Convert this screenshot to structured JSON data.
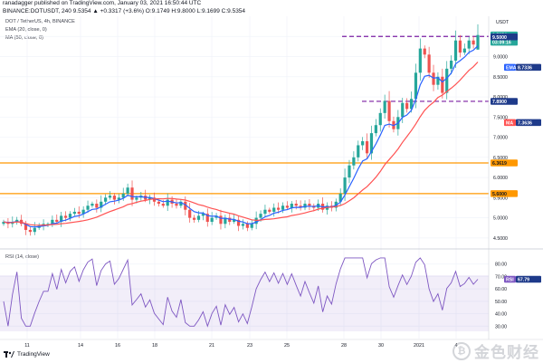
{
  "header": {
    "author_line": "ranadagger published on TradingView.com, January 03, 2021 16:50:44 UTC",
    "symbol_line": "BINANCE:DOTUSDT, 240  9.5354  ▲ +0.3317 (+3.6%)  O:9.1749  H:9.8000  L:9.1699  C:9.5354"
  },
  "legend": {
    "pair": "DOT / TetherUS, 4h, BINANCE",
    "ema": "EMA (20, close, 0)",
    "ma": "MA (50, close, 0)",
    "rsi": "RSI (14, close)"
  },
  "axis": {
    "currency": "USDT",
    "price_ticks": [
      {
        "label": "9.5000",
        "value": 9.5
      },
      {
        "label": "9.0000",
        "value": 9.0
      },
      {
        "label": "8.5000",
        "value": 8.5
      },
      {
        "label": "8.0000",
        "value": 8.0
      },
      {
        "label": "7.5000",
        "value": 7.5
      },
      {
        "label": "7.0000",
        "value": 7.0
      },
      {
        "label": "6.5000",
        "value": 6.5
      },
      {
        "label": "6.0000",
        "value": 6.0
      },
      {
        "label": "5.5000",
        "value": 5.5
      },
      {
        "label": "5.0000",
        "value": 5.0
      },
      {
        "label": "4.5000",
        "value": 4.5
      }
    ],
    "rsi_ticks": [
      {
        "label": "80.00",
        "value": 80
      },
      {
        "label": "70.00",
        "value": 70
      },
      {
        "label": "60.00",
        "value": 60
      },
      {
        "label": "50.00",
        "value": 50
      },
      {
        "label": "40.00",
        "value": 40
      },
      {
        "label": "30.00",
        "value": 30
      }
    ],
    "dates": [
      "11",
      "14",
      "16",
      "18",
      "21",
      "23",
      "25",
      "28",
      "30",
      "2021",
      "4"
    ]
  },
  "badges": {
    "price": "9.5354",
    "countdown": "03:09:16",
    "ema_label": "EMA",
    "ema_value": "8.7336",
    "ma_label": "MA",
    "ma_value": "7.3636",
    "level_950": "9.5000",
    "level_789": "7.8900",
    "level_634": "6.3619",
    "level_560": "5.6000",
    "rsi_label": "RSI",
    "rsi_value": "67.79"
  },
  "colors": {
    "candle_up": "#26a69a",
    "candle_down": "#ef5350",
    "ema": "#2962ff",
    "ma": "#ff5252",
    "rsi": "#7e57c2",
    "resistance": "#7b1fa2",
    "support": "#ff9800"
  },
  "footer": {
    "brand": "TradingView",
    "watermark": "金色财经"
  },
  "chart_data": {
    "type": "candlestick",
    "symbol": "DOT / TetherUS",
    "timeframe": "4h",
    "ylim": [
      4.25,
      10.0
    ],
    "horizontal_levels": [
      9.5,
      7.89,
      6.3619,
      5.6
    ],
    "last": {
      "open": 9.1749,
      "high": 9.8,
      "low": 9.1699,
      "close": 9.5354
    },
    "ema20_last": 8.7336,
    "ma50_last": 7.3636,
    "rsi_last": 67.79,
    "rsi_ylim": [
      20,
      90
    ],
    "close_path": [
      4.9,
      4.85,
      4.9,
      4.95,
      4.85,
      4.7,
      4.65,
      4.75,
      4.8,
      4.85,
      4.85,
      4.95,
      4.9,
      5.05,
      5.0,
      5.1,
      5.15,
      5.1,
      5.2,
      5.3,
      5.35,
      5.25,
      5.4,
      5.5,
      5.55,
      5.45,
      5.5,
      5.6,
      5.75,
      5.45,
      5.5,
      5.55,
      5.45,
      5.5,
      5.4,
      5.35,
      5.3,
      5.45,
      5.35,
      5.3,
      5.4,
      5.2,
      5.0,
      4.95,
      5.05,
      5.1,
      4.9,
      5.0,
      5.05,
      4.85,
      5.0,
      4.9,
      4.95,
      4.8,
      4.85,
      4.75,
      4.85,
      5.0,
      5.1,
      5.2,
      5.15,
      5.25,
      5.2,
      5.3,
      5.25,
      5.35,
      5.3,
      5.25,
      5.35,
      5.3,
      5.25,
      5.35,
      5.2,
      5.3,
      5.25,
      5.4,
      5.6,
      6.0,
      6.3,
      6.5,
      6.8,
      6.9,
      6.6,
      7.1,
      7.3,
      7.6,
      7.9,
      7.4,
      7.2,
      7.5,
      7.85,
      7.7,
      7.95,
      8.6,
      9.2,
      9.05,
      8.6,
      8.3,
      8.5,
      8.1,
      8.7,
      8.9,
      9.4,
      9.1,
      9.2,
      9.4,
      9.3,
      9.5354
    ]
  }
}
